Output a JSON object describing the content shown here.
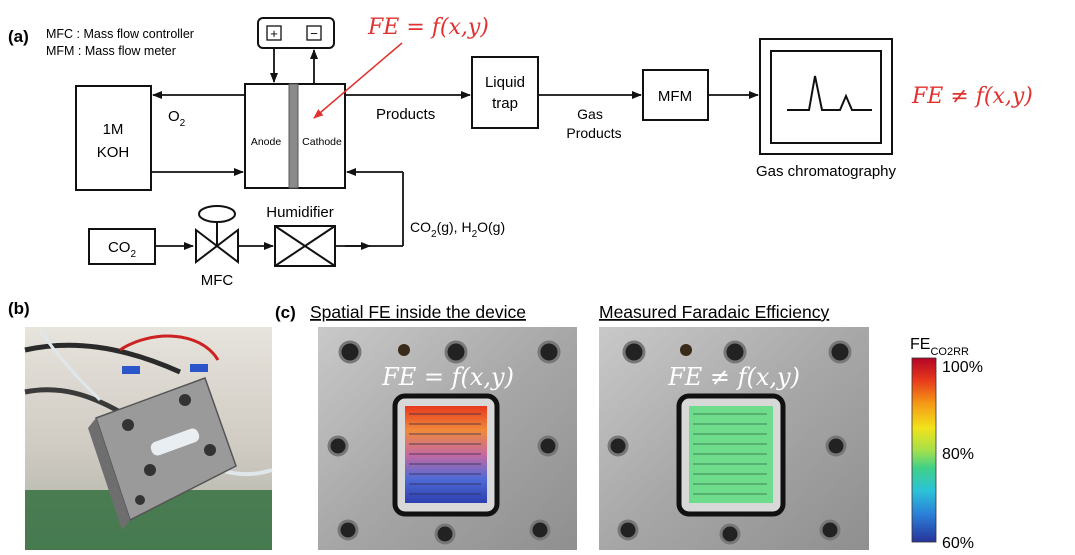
{
  "panel_a": {
    "label": "(a)",
    "legend": [
      "MFC : Mass flow controller",
      "MFM : Mass flow meter"
    ],
    "koh_line1": "1M",
    "koh_line2": "KOH",
    "o2": "O",
    "o2_sub": "2",
    "plus": "+",
    "minus": "−",
    "anode": "Anode",
    "cathode": "Cathode",
    "fe_red": "FE = f(x,y)",
    "products": "Products",
    "trap_line1": "Liquid",
    "trap_line2": "trap",
    "gas_products_1": "Gas",
    "gas_products_2": "Products",
    "mfm": "MFM",
    "gc": "Gas chromatography",
    "fe_ne": "FE ≠ f(x,y)",
    "co2": "CO",
    "co2_sub": "2",
    "mfc": "MFC",
    "humidifier": "Humidifier",
    "feed_a": "CO",
    "feed_sub1": "2",
    "feed_b": "(g), H",
    "feed_sub2": "2",
    "feed_c": "O(g)"
  },
  "panel_b": {
    "label": "(b)"
  },
  "panel_c": {
    "label": "(c)",
    "title_left": "Spatial FE inside the device",
    "title_right": "Measured Faradaic Efficiency",
    "overlay_left": "FE = f(x,y)",
    "overlay_right": "FE ≠ f(x,y)"
  },
  "colorbar": {
    "title": "FE",
    "title_sub": "CO2RR",
    "tick_top": "100%",
    "tick_mid": "80%",
    "tick_bottom": "60%",
    "colors": [
      "#b40426",
      "#e8391c",
      "#f59b16",
      "#f2e31a",
      "#a6e04a",
      "#3fd08a",
      "#2bc3d8",
      "#2b7fd8",
      "#27339a"
    ]
  }
}
